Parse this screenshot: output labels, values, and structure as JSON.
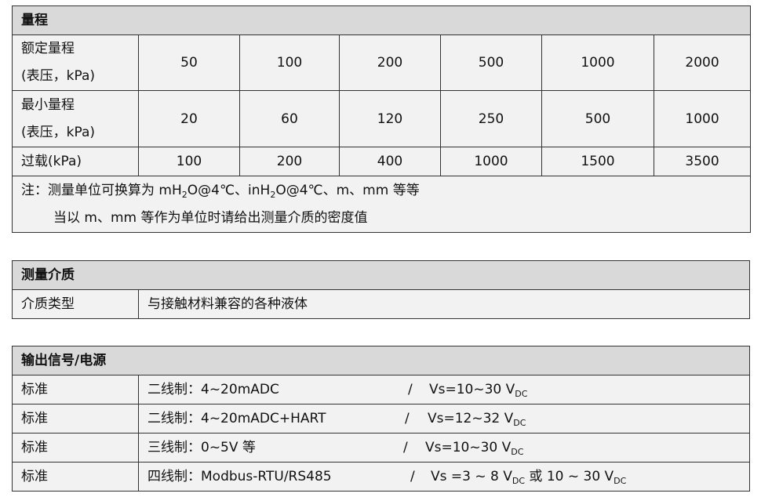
{
  "range": {
    "title": "量程",
    "rows": [
      {
        "label1": "额定量程",
        "label2": "(表压，kPa)",
        "values": [
          "50",
          "100",
          "200",
          "500",
          "1000",
          "2000"
        ]
      },
      {
        "label1": "最小量程",
        "label2": "(表压，kPa)",
        "values": [
          "20",
          "60",
          "120",
          "250",
          "500",
          "1000"
        ]
      },
      {
        "label1": "过载(kPa)",
        "values": [
          "100",
          "200",
          "400",
          "1000",
          "1500",
          "3500"
        ]
      }
    ],
    "note": {
      "line1": [
        "注：测量单位可换算为 mH",
        "2",
        "O@4℃、inH",
        "2",
        "O@4℃、m、mm 等等"
      ],
      "line2": "当以 m、mm 等作为单位时请给出测量介质的密度值"
    }
  },
  "medium": {
    "title": "测量介质",
    "label": "介质类型",
    "value": "与接触材料兼容的各种液体"
  },
  "output": {
    "title": "输出信号/电源",
    "rows": [
      {
        "label": "标准",
        "signal": "二线制：4~20mADC",
        "slash": "/",
        "supply": [
          "Vs=10~30 V",
          "DC"
        ]
      },
      {
        "label": "标准",
        "signal": "二线制：4~20mADC+HART",
        "slash": "/",
        "supply": [
          "Vs=12~32 V",
          "DC"
        ]
      },
      {
        "label": "标准",
        "signal": "三线制：0~5V 等",
        "slash": "/",
        "supply": [
          "Vs=10~30 V",
          "DC"
        ]
      },
      {
        "label": "标准",
        "signal": "四线制：Modbus-RTU/RS485",
        "slash": "/",
        "supply": [
          "Vs =3 ~ 8 V",
          "DC",
          " 或 10 ~ 30 V",
          "DC"
        ]
      }
    ]
  }
}
